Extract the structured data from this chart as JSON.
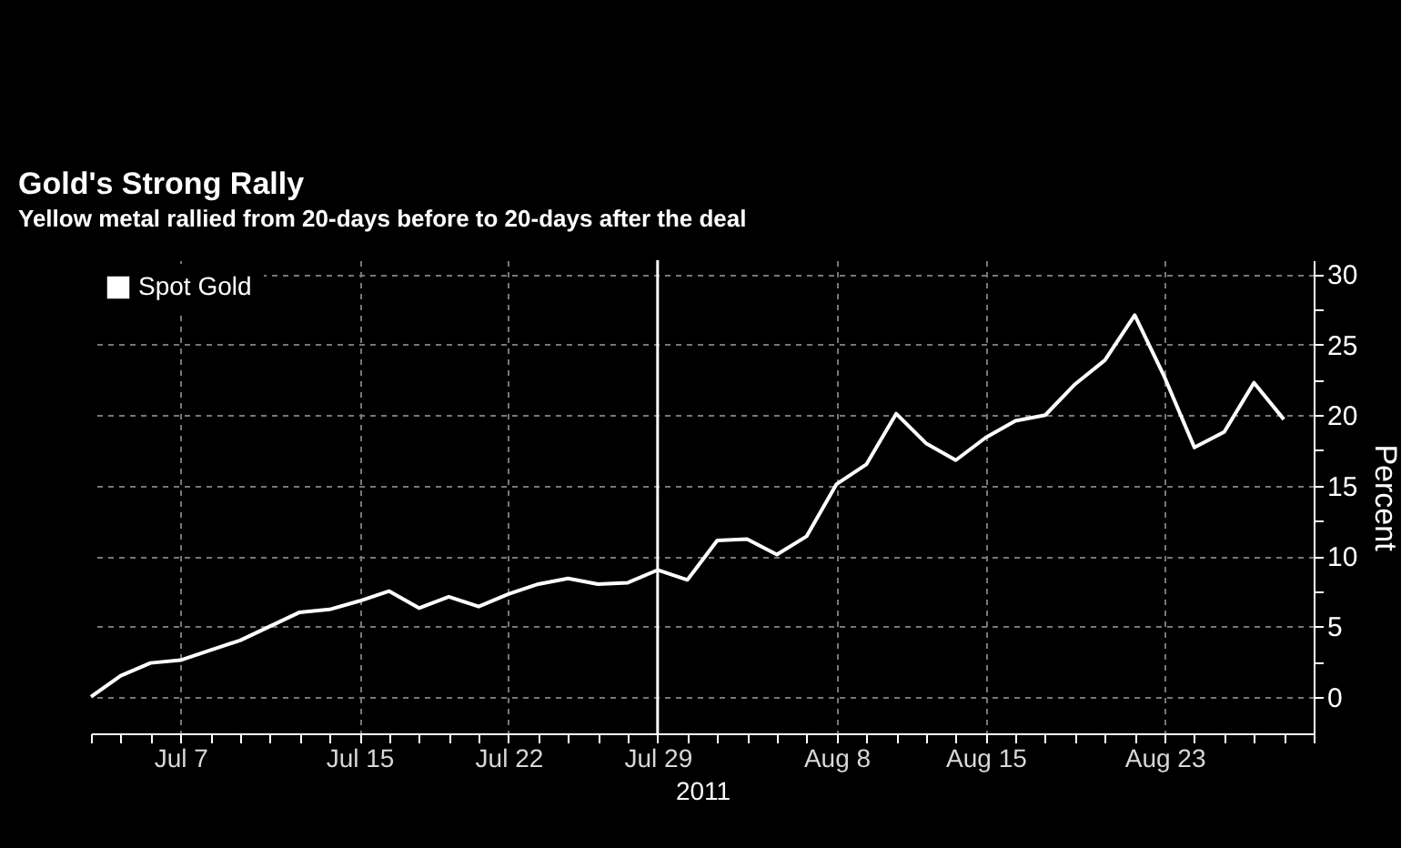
{
  "chart_data": {
    "type": "line",
    "title": "Gold's Strong Rally",
    "subtitle": "Yellow metal rallied from 20-days before to 20-days after the deal",
    "xlabel": "2011",
    "ylabel": "Percent",
    "categories": [
      null,
      null,
      null,
      "Jul 7",
      null,
      null,
      null,
      null,
      null,
      "Jul 15",
      null,
      null,
      null,
      null,
      "Jul 22",
      null,
      null,
      null,
      null,
      "Jul 29",
      null,
      null,
      null,
      null,
      null,
      "Aug 8",
      null,
      null,
      null,
      null,
      "Aug 15",
      null,
      null,
      null,
      null,
      null,
      "Aug 23",
      null,
      null,
      null,
      null,
      null
    ],
    "series": [
      {
        "name": "Spot Gold",
        "color": "#ffffff",
        "values": [
          0,
          1.5,
          2.4,
          2.6,
          3.3,
          4.0,
          5.0,
          6.0,
          6.2,
          6.8,
          7.5,
          6.3,
          7.1,
          6.4,
          7.3,
          8.0,
          8.4,
          8.0,
          8.1,
          9.0,
          8.3,
          11.1,
          11.2,
          10.1,
          11.4,
          15.1,
          16.5,
          20.1,
          18.0,
          16.8,
          18.4,
          19.6,
          20.0,
          22.2,
          23.9,
          27.1,
          22.7,
          17.7,
          18.8,
          22.3,
          19.7,
          null
        ]
      }
    ],
    "ylim": [
      -2.6,
      31
    ],
    "yticks": [
      0,
      {
        "value": 2.5,
        "label": null
      },
      5,
      {
        "value": 7.5,
        "label": null
      },
      10,
      {
        "value": 12.5,
        "label": null
      },
      15,
      {
        "value": 17.5,
        "label": null
      },
      20,
      {
        "value": 22.5,
        "label": null
      },
      25,
      {
        "value": 27.5,
        "label": null
      },
      30
    ],
    "ref_lines": [
      {
        "axis": "x",
        "value": "Jul 29",
        "color": "#ffffff"
      }
    ],
    "grid": true,
    "legend": "top left",
    "marker": "none",
    "line_style": "solid"
  }
}
